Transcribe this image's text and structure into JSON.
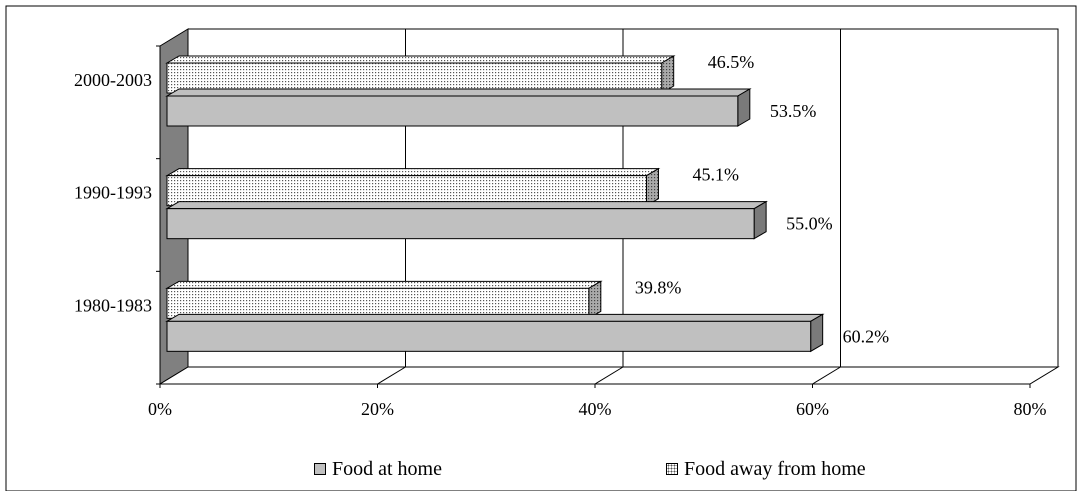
{
  "chart_data": {
    "type": "bar",
    "orientation": "horizontal",
    "style": "3d",
    "categories": [
      "1980-1983",
      "1990-1993",
      "2000-2003"
    ],
    "series": [
      {
        "name": "Food at home",
        "values": [
          60.2,
          55.0,
          53.5
        ],
        "labels": [
          "60.2%",
          "55.0%",
          "53.5%"
        ],
        "color": "#c0c0c0",
        "pattern": "solid"
      },
      {
        "name": "Food away from home",
        "values": [
          39.8,
          45.1,
          46.5
        ],
        "labels": [
          "39.8%",
          "45.1%",
          "46.5%"
        ],
        "color": "#ffffff",
        "pattern": "dotted"
      }
    ],
    "x_ticks": [
      "0%",
      "20%",
      "40%",
      "60%",
      "80%"
    ],
    "xlim": [
      0,
      80
    ],
    "value_unit": "percent",
    "gridlines": "vertical",
    "legend_position": "bottom",
    "wall_color": "#808080",
    "title": "",
    "xlabel": "",
    "ylabel": ""
  },
  "legend": {
    "home_label": "Food at home",
    "away_label": "Food away from home"
  }
}
